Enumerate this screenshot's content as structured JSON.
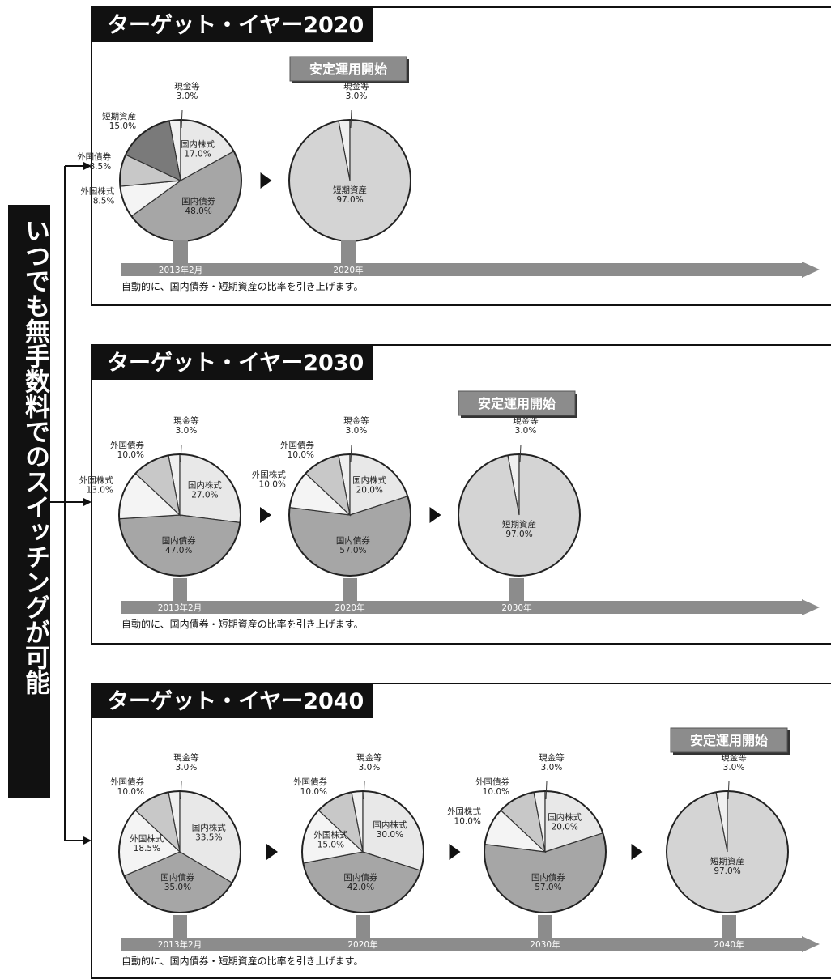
{
  "side_caption": "いつでも無手数料でのスイッチングが可能",
  "footnote": "自動的に、国内債券・短期資産の比率を引き上げます。",
  "stable_label": "安定運用開始",
  "colors": {
    "国内株式": "#e8e8e8",
    "国内債券": "#a6a6a6",
    "外国株式": "#f4f4f4",
    "外国債券": "#c8c8c8",
    "短期資産": "#7a7a7a",
    "短期資産_final": "#d4d4d4",
    "現金等": "#f0f0f0",
    "timeline": "#8c8c8c",
    "header_bg": "#111111"
  },
  "chart_data": [
    {
      "type": "pie",
      "title": "ターゲット・イヤー2020",
      "timeline_labels": [
        "2013年2月",
        "2020年"
      ],
      "pies": [
        {
          "year": "2013年2月",
          "slices": [
            {
              "name": "現金等",
              "value": 3.0,
              "label": "3.0%"
            },
            {
              "name": "国内株式",
              "value": 17.0,
              "label": "17.0%"
            },
            {
              "name": "国内債券",
              "value": 48.0,
              "label": "48.0%"
            },
            {
              "name": "外国株式",
              "value": 8.5,
              "label": "8.5%"
            },
            {
              "name": "外国債券",
              "value": 8.5,
              "label": "8.5%"
            },
            {
              "name": "短期資産",
              "value": 15.0,
              "label": "15.0%"
            }
          ]
        },
        {
          "year": "2020年",
          "stable": true,
          "slices": [
            {
              "name": "現金等",
              "value": 3.0,
              "label": "3.0%"
            },
            {
              "name": "短期資産",
              "value": 97.0,
              "label": "97.0%"
            }
          ]
        }
      ]
    },
    {
      "type": "pie",
      "title": "ターゲット・イヤー2030",
      "timeline_labels": [
        "2013年2月",
        "2020年",
        "2030年"
      ],
      "pies": [
        {
          "year": "2013年2月",
          "slices": [
            {
              "name": "現金等",
              "value": 3.0,
              "label": "3.0%"
            },
            {
              "name": "国内株式",
              "value": 27.0,
              "label": "27.0%"
            },
            {
              "name": "国内債券",
              "value": 47.0,
              "label": "47.0%"
            },
            {
              "name": "外国株式",
              "value": 13.0,
              "label": "13.0%"
            },
            {
              "name": "外国債券",
              "value": 10.0,
              "label": "10.0%"
            }
          ]
        },
        {
          "year": "2020年",
          "slices": [
            {
              "name": "現金等",
              "value": 3.0,
              "label": "3.0%"
            },
            {
              "name": "国内株式",
              "value": 20.0,
              "label": "20.0%"
            },
            {
              "name": "国内債券",
              "value": 57.0,
              "label": "57.0%"
            },
            {
              "name": "外国株式",
              "value": 10.0,
              "label": "10.0%"
            },
            {
              "name": "外国債券",
              "value": 10.0,
              "label": "10.0%"
            }
          ]
        },
        {
          "year": "2030年",
          "stable": true,
          "slices": [
            {
              "name": "現金等",
              "value": 3.0,
              "label": "3.0%"
            },
            {
              "name": "短期資産",
              "value": 97.0,
              "label": "97.0%"
            }
          ]
        }
      ]
    },
    {
      "type": "pie",
      "title": "ターゲット・イヤー2040",
      "timeline_labels": [
        "2013年2月",
        "2020年",
        "2030年",
        "2040年"
      ],
      "pies": [
        {
          "year": "2013年2月",
          "slices": [
            {
              "name": "現金等",
              "value": 3.0,
              "label": "3.0%"
            },
            {
              "name": "国内株式",
              "value": 33.5,
              "label": "33.5%"
            },
            {
              "name": "国内債券",
              "value": 35.0,
              "label": "35.0%"
            },
            {
              "name": "外国株式",
              "value": 18.5,
              "label": "18.5%"
            },
            {
              "name": "外国債券",
              "value": 10.0,
              "label": "10.0%"
            }
          ]
        },
        {
          "year": "2020年",
          "slices": [
            {
              "name": "現金等",
              "value": 3.0,
              "label": "3.0%"
            },
            {
              "name": "国内株式",
              "value": 30.0,
              "label": "30.0%"
            },
            {
              "name": "国内債券",
              "value": 42.0,
              "label": "42.0%"
            },
            {
              "name": "外国株式",
              "value": 15.0,
              "label": "15.0%"
            },
            {
              "name": "外国債券",
              "value": 10.0,
              "label": "10.0%"
            }
          ]
        },
        {
          "year": "2030年",
          "slices": [
            {
              "name": "現金等",
              "value": 3.0,
              "label": "3.0%"
            },
            {
              "name": "国内株式",
              "value": 20.0,
              "label": "20.0%"
            },
            {
              "name": "国内債券",
              "value": 57.0,
              "label": "57.0%"
            },
            {
              "name": "外国株式",
              "value": 10.0,
              "label": "10.0%"
            },
            {
              "name": "外国債券",
              "value": 10.0,
              "label": "10.0%"
            }
          ]
        },
        {
          "year": "2040年",
          "stable": true,
          "slices": [
            {
              "name": "現金等",
              "value": 3.0,
              "label": "3.0%"
            },
            {
              "name": "短期資産",
              "value": 97.0,
              "label": "97.0%"
            }
          ]
        }
      ]
    }
  ]
}
